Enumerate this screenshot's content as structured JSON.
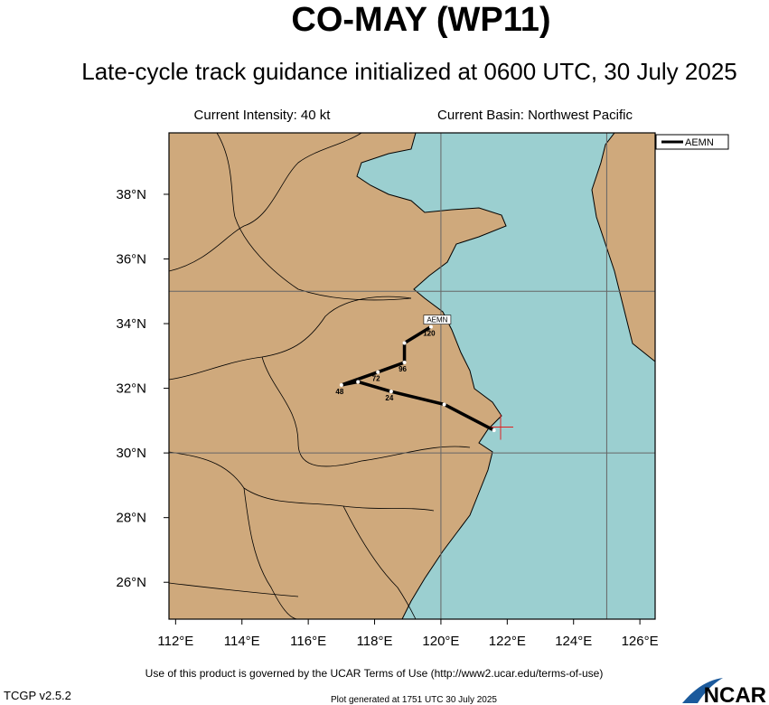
{
  "title": "CO-MAY (WP11)",
  "subtitle": "Late-cycle track guidance initialized at 0600 UTC, 30 July 2025",
  "intensity": "Current Intensity: 40 kt",
  "basin": "Current Basin: Northwest Pacific",
  "map": {
    "lonlim": [
      111.8,
      126.46
    ],
    "latlim": [
      24.86,
      39.9
    ],
    "lonticks": [
      {
        "value": 112,
        "label": "112°E"
      },
      {
        "value": 114,
        "label": "114°E"
      },
      {
        "value": 116,
        "label": "116°E"
      },
      {
        "value": 118,
        "label": "118°E"
      },
      {
        "value": 120,
        "label": "120°E"
      },
      {
        "value": 122,
        "label": "122°E"
      },
      {
        "value": 124,
        "label": "124°E"
      },
      {
        "value": 126,
        "label": "126°E"
      }
    ],
    "latticks": [
      {
        "value": 26,
        "label": "26°N"
      },
      {
        "value": 28,
        "label": "28°N"
      },
      {
        "value": 30,
        "label": "30°N"
      },
      {
        "value": 32,
        "label": "32°N"
      },
      {
        "value": 34,
        "label": "34°N"
      },
      {
        "value": 36,
        "label": "36°N"
      },
      {
        "value": 38,
        "label": "38°N"
      }
    ],
    "grid_lon": [
      120,
      125
    ],
    "grid_lat": [
      30,
      35
    ],
    "current_position": {
      "lon": 121.8,
      "lat": 30.8
    }
  },
  "track": {
    "name": "AEMN",
    "color": "#000000",
    "lon": [
      121.6,
      120.1,
      118.5,
      117.5,
      117.0,
      118.1,
      118.9,
      118.9,
      119.7
    ],
    "lat": [
      30.7,
      31.5,
      31.9,
      32.2,
      32.1,
      32.5,
      32.8,
      33.4,
      33.9
    ],
    "labels": [
      null,
      null,
      "24",
      null,
      "48",
      "72",
      "96",
      null,
      "120"
    ]
  },
  "footer": {
    "terms": "Use of this product is governed by the UCAR Terms of Use (http://www2.ucar.edu/terms-of-use)",
    "version": "TCGP v2.5.2",
    "generated": "Plot generated at 1751 UTC  30 July 2025",
    "logo": "NCAR"
  }
}
